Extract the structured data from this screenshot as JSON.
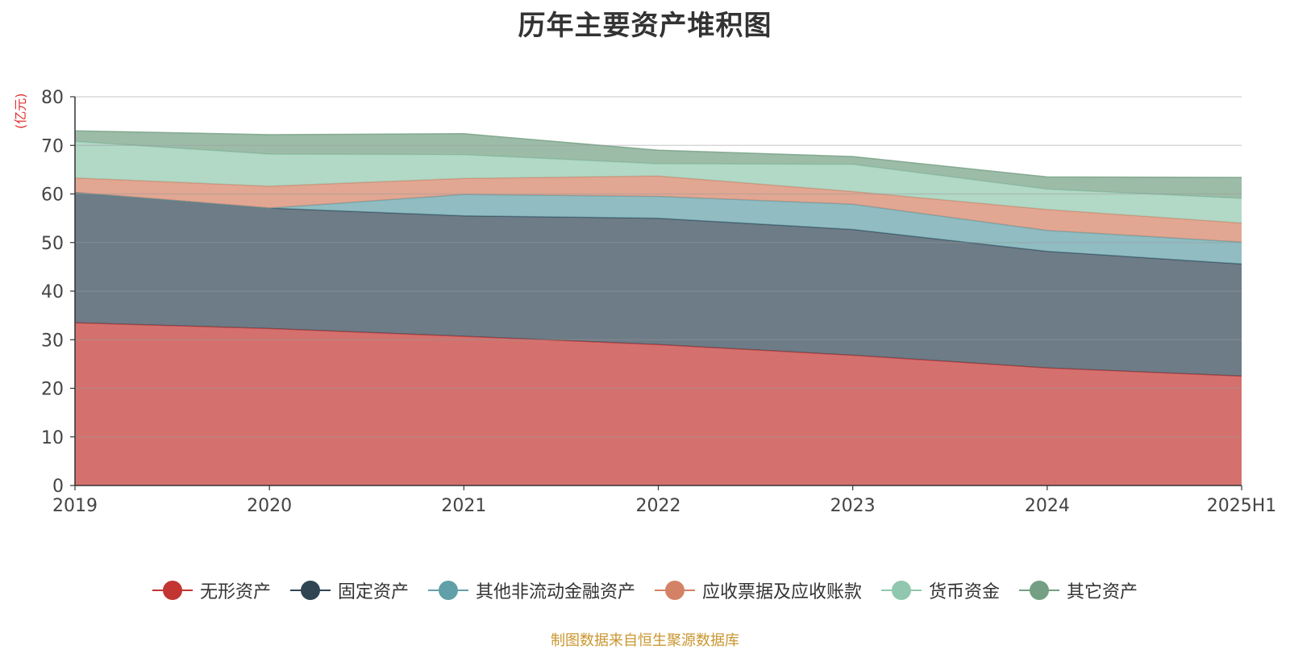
{
  "chart_data": {
    "type": "area",
    "stacked": true,
    "title": "历年主要资产堆积图",
    "ylabel": "(亿元)",
    "xlabel": "",
    "categories": [
      "2019",
      "2020",
      "2021",
      "2022",
      "2023",
      "2024",
      "2025H1"
    ],
    "ylim": [
      0,
      80
    ],
    "yticks": [
      "0",
      "10",
      "20",
      "30",
      "40",
      "50",
      "60",
      "70",
      "80"
    ],
    "grid": true,
    "legend_position": "bottom",
    "series": [
      {
        "name": "无形资产",
        "values": [
          33.5,
          32.3,
          30.7,
          29.0,
          26.8,
          24.2,
          22.5
        ],
        "color": "#c23531"
      },
      {
        "name": "固定资产",
        "values": [
          26.8,
          24.8,
          24.8,
          26.0,
          25.9,
          24.0,
          23.1
        ],
        "color": "#2f4554"
      },
      {
        "name": "其他非流动金融资产",
        "values": [
          0.0,
          0.0,
          4.4,
          4.5,
          5.2,
          4.3,
          4.5
        ],
        "color": "#61a0a8"
      },
      {
        "name": "应收票据及应收账款",
        "values": [
          3.0,
          4.5,
          3.3,
          4.2,
          2.6,
          4.3,
          3.9
        ],
        "color": "#d48265"
      },
      {
        "name": "货币资金",
        "values": [
          7.5,
          6.6,
          4.9,
          2.5,
          5.6,
          4.2,
          5.1
        ],
        "color": "#91c7ae"
      },
      {
        "name": "其它资产",
        "values": [
          2.2,
          4.0,
          4.3,
          2.8,
          1.6,
          2.5,
          4.3
        ],
        "color": "#749f83"
      }
    ]
  },
  "source_note": "制图数据来自恒生聚源数据库"
}
